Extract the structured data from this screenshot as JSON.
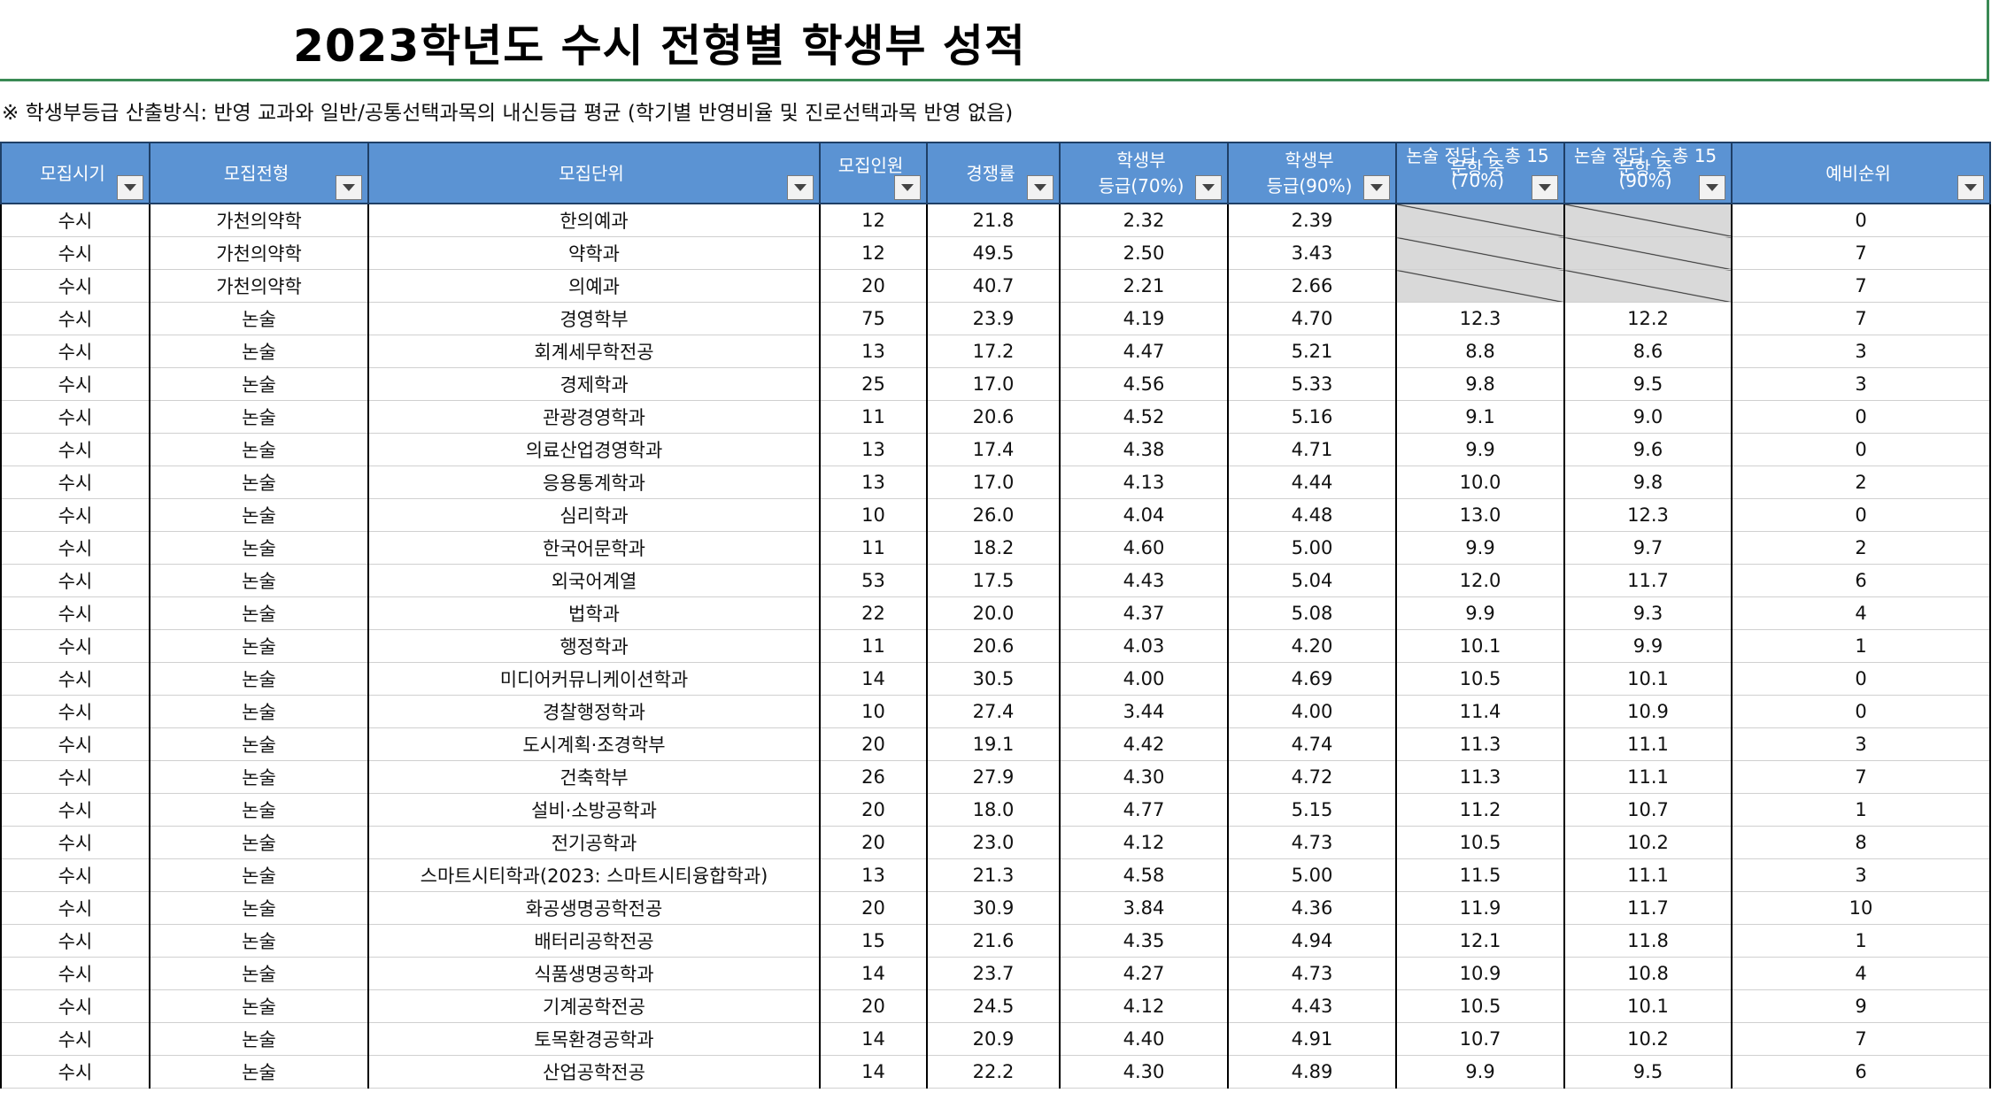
{
  "sheet": {
    "title": "2023학년도 수시 전형별 학생부 성적",
    "note": "※ 학생부등급 산출방식: 반영 교과와 일반/공통선택과목의 내신등급 평균 (학기별 반영비율 및 진로선택과목 반영 없음)"
  },
  "columns": [
    {
      "label": "모집시기"
    },
    {
      "label": "모집전형"
    },
    {
      "label": "모집단위"
    },
    {
      "label": "모집인원"
    },
    {
      "label": "경쟁률"
    },
    {
      "label_line1": "학생부",
      "label_line2": "등급(70%)"
    },
    {
      "label_line1": "학생부",
      "label_line2": "등급(90%)"
    },
    {
      "label_line1": "논술 정답 수 총 15",
      "label_line2": "문항 중",
      "label_line3": "(70%)"
    },
    {
      "label_line1": "논술 정답 수 총 15",
      "label_line2": "문항 중",
      "label_line3": "(90%)"
    },
    {
      "label": "예비순위"
    }
  ],
  "rows": [
    [
      "수시",
      "가천의약학",
      "한의예과",
      "12",
      "21.8",
      "2.32",
      "2.39",
      "",
      "",
      "0"
    ],
    [
      "수시",
      "가천의약학",
      "약학과",
      "12",
      "49.5",
      "2.50",
      "3.43",
      "",
      "",
      "7"
    ],
    [
      "수시",
      "가천의약학",
      "의예과",
      "20",
      "40.7",
      "2.21",
      "2.66",
      "",
      "",
      "7"
    ],
    [
      "수시",
      "논술",
      "경영학부",
      "75",
      "23.9",
      "4.19",
      "4.70",
      "12.3",
      "12.2",
      "7"
    ],
    [
      "수시",
      "논술",
      "회계세무학전공",
      "13",
      "17.2",
      "4.47",
      "5.21",
      "8.8",
      "8.6",
      "3"
    ],
    [
      "수시",
      "논술",
      "경제학과",
      "25",
      "17.0",
      "4.56",
      "5.33",
      "9.8",
      "9.5",
      "3"
    ],
    [
      "수시",
      "논술",
      "관광경영학과",
      "11",
      "20.6",
      "4.52",
      "5.16",
      "9.1",
      "9.0",
      "0"
    ],
    [
      "수시",
      "논술",
      "의료산업경영학과",
      "13",
      "17.4",
      "4.38",
      "4.71",
      "9.9",
      "9.6",
      "0"
    ],
    [
      "수시",
      "논술",
      "응용통계학과",
      "13",
      "17.0",
      "4.13",
      "4.44",
      "10.0",
      "9.8",
      "2"
    ],
    [
      "수시",
      "논술",
      "심리학과",
      "10",
      "26.0",
      "4.04",
      "4.48",
      "13.0",
      "12.3",
      "0"
    ],
    [
      "수시",
      "논술",
      "한국어문학과",
      "11",
      "18.2",
      "4.60",
      "5.00",
      "9.9",
      "9.7",
      "2"
    ],
    [
      "수시",
      "논술",
      "외국어계열",
      "53",
      "17.5",
      "4.43",
      "5.04",
      "12.0",
      "11.7",
      "6"
    ],
    [
      "수시",
      "논술",
      "법학과",
      "22",
      "20.0",
      "4.37",
      "5.08",
      "9.9",
      "9.3",
      "4"
    ],
    [
      "수시",
      "논술",
      "행정학과",
      "11",
      "20.6",
      "4.03",
      "4.20",
      "10.1",
      "9.9",
      "1"
    ],
    [
      "수시",
      "논술",
      "미디어커뮤니케이션학과",
      "14",
      "30.5",
      "4.00",
      "4.69",
      "10.5",
      "10.1",
      "0"
    ],
    [
      "수시",
      "논술",
      "경찰행정학과",
      "10",
      "27.4",
      "3.44",
      "4.00",
      "11.4",
      "10.9",
      "0"
    ],
    [
      "수시",
      "논술",
      "도시계획·조경학부",
      "20",
      "19.1",
      "4.42",
      "4.74",
      "11.3",
      "11.1",
      "3"
    ],
    [
      "수시",
      "논술",
      "건축학부",
      "26",
      "27.9",
      "4.30",
      "4.72",
      "11.3",
      "11.1",
      "7"
    ],
    [
      "수시",
      "논술",
      "설비·소방공학과",
      "20",
      "18.0",
      "4.77",
      "5.15",
      "11.2",
      "10.7",
      "1"
    ],
    [
      "수시",
      "논술",
      "전기공학과",
      "20",
      "23.0",
      "4.12",
      "4.73",
      "10.5",
      "10.2",
      "8"
    ],
    [
      "수시",
      "논술",
      "스마트시티학과(2023: 스마트시티융합학과)",
      "13",
      "21.3",
      "4.58",
      "5.00",
      "11.5",
      "11.1",
      "3"
    ],
    [
      "수시",
      "논술",
      "화공생명공학전공",
      "20",
      "30.9",
      "3.84",
      "4.36",
      "11.9",
      "11.7",
      "10"
    ],
    [
      "수시",
      "논술",
      "배터리공학전공",
      "15",
      "21.6",
      "4.35",
      "4.94",
      "12.1",
      "11.8",
      "1"
    ],
    [
      "수시",
      "논술",
      "식품생명공학과",
      "14",
      "23.7",
      "4.27",
      "4.73",
      "10.9",
      "10.8",
      "4"
    ],
    [
      "수시",
      "논술",
      "기계공학전공",
      "20",
      "24.5",
      "4.12",
      "4.43",
      "10.5",
      "10.1",
      "9"
    ],
    [
      "수시",
      "논술",
      "토목환경공학과",
      "14",
      "20.9",
      "4.40",
      "4.91",
      "10.7",
      "10.2",
      "7"
    ],
    [
      "수시",
      "논술",
      "산업공학전공",
      "14",
      "22.2",
      "4.30",
      "4.89",
      "9.9",
      "9.5",
      "6"
    ]
  ],
  "na_cells": [
    [
      0,
      7
    ],
    [
      0,
      8
    ],
    [
      1,
      7
    ],
    [
      1,
      8
    ],
    [
      2,
      7
    ],
    [
      2,
      8
    ]
  ],
  "colors": {
    "header_bg": "#5b93d3",
    "header_text": "#ffffff",
    "na_bg": "#d9d9d9",
    "title_border": "#3a8a54"
  },
  "icons": {
    "filter": "dropdown-filter-icon"
  }
}
